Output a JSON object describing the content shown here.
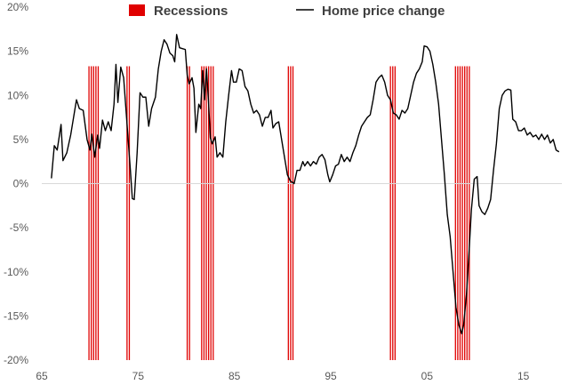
{
  "chart_data": {
    "type": "line",
    "title": "",
    "xlabel": "",
    "ylabel": "",
    "xlim": [
      1965,
      2019
    ],
    "ylim": [
      -20,
      20
    ],
    "x_ticks": [
      1965,
      1975,
      1985,
      1995,
      2005,
      2015
    ],
    "x_tick_labels": [
      "65",
      "75",
      "85",
      "95",
      "05",
      "15"
    ],
    "y_ticks": [
      -20,
      -15,
      -10,
      -5,
      0,
      5,
      10,
      15,
      20
    ],
    "y_tick_labels": [
      "-20%",
      "-15%",
      "-10%",
      "-5%",
      "0%",
      "5%",
      "10%",
      "15%",
      "20%"
    ],
    "grid": false,
    "legend": {
      "placement": "top",
      "entries": [
        {
          "label": "Recessions",
          "color": "#e00000",
          "kind": "bar"
        },
        {
          "label": "Home price change",
          "color": "#000000",
          "kind": "line"
        }
      ]
    },
    "recession_band_height": 13.3,
    "recessions": [
      {
        "start": 1969.9,
        "end": 1970.9
      },
      {
        "start": 1973.85,
        "end": 1974.3
      },
      {
        "start": 1980.1,
        "end": 1980.55
      },
      {
        "start": 1981.6,
        "end": 1982.85
      },
      {
        "start": 1990.6,
        "end": 1991.2
      },
      {
        "start": 2001.2,
        "end": 2001.85
      },
      {
        "start": 2007.95,
        "end": 2009.45
      }
    ],
    "series": [
      {
        "name": "Home price change",
        "color": "#000000",
        "points": [
          [
            1966.0,
            0.6
          ],
          [
            1966.3,
            4.3
          ],
          [
            1966.6,
            3.8
          ],
          [
            1967.0,
            6.7
          ],
          [
            1967.2,
            2.6
          ],
          [
            1967.6,
            3.5
          ],
          [
            1968.0,
            5.5
          ],
          [
            1968.3,
            7.5
          ],
          [
            1968.6,
            9.5
          ],
          [
            1968.9,
            8.5
          ],
          [
            1969.3,
            8.3
          ],
          [
            1969.7,
            5.0
          ],
          [
            1970.0,
            3.8
          ],
          [
            1970.2,
            5.6
          ],
          [
            1970.5,
            3.0
          ],
          [
            1970.8,
            5.5
          ],
          [
            1971.0,
            4.0
          ],
          [
            1971.3,
            7.2
          ],
          [
            1971.6,
            6.0
          ],
          [
            1971.9,
            7.0
          ],
          [
            1972.2,
            6.0
          ],
          [
            1972.5,
            9.0
          ],
          [
            1972.7,
            13.5
          ],
          [
            1972.9,
            9.2
          ],
          [
            1973.2,
            13.2
          ],
          [
            1973.5,
            12.0
          ],
          [
            1973.8,
            7.5
          ],
          [
            1974.0,
            4.5
          ],
          [
            1974.2,
            1.5
          ],
          [
            1974.4,
            -1.7
          ],
          [
            1974.6,
            -1.8
          ],
          [
            1974.9,
            3.5
          ],
          [
            1975.2,
            10.3
          ],
          [
            1975.5,
            9.8
          ],
          [
            1975.8,
            9.8
          ],
          [
            1976.1,
            6.5
          ],
          [
            1976.4,
            8.5
          ],
          [
            1976.8,
            9.8
          ],
          [
            1977.1,
            13.0
          ],
          [
            1977.4,
            15.0
          ],
          [
            1977.7,
            16.3
          ],
          [
            1978.0,
            15.8
          ],
          [
            1978.3,
            14.8
          ],
          [
            1978.6,
            14.5
          ],
          [
            1978.8,
            13.8
          ],
          [
            1979.0,
            16.9
          ],
          [
            1979.3,
            15.4
          ],
          [
            1979.6,
            15.3
          ],
          [
            1979.9,
            15.2
          ],
          [
            1980.1,
            12.3
          ],
          [
            1980.3,
            11.3
          ],
          [
            1980.6,
            12.0
          ],
          [
            1980.8,
            10.8
          ],
          [
            1981.0,
            5.8
          ],
          [
            1981.3,
            9.0
          ],
          [
            1981.5,
            8.5
          ],
          [
            1981.7,
            12.8
          ],
          [
            1981.9,
            9.5
          ],
          [
            1982.1,
            13.0
          ],
          [
            1982.3,
            9.5
          ],
          [
            1982.5,
            5.2
          ],
          [
            1982.7,
            4.5
          ],
          [
            1983.0,
            5.3
          ],
          [
            1983.2,
            3.0
          ],
          [
            1983.5,
            3.5
          ],
          [
            1983.8,
            3.0
          ],
          [
            1984.1,
            7.0
          ],
          [
            1984.4,
            10.0
          ],
          [
            1984.7,
            12.8
          ],
          [
            1984.9,
            11.5
          ],
          [
            1985.2,
            11.5
          ],
          [
            1985.5,
            13.0
          ],
          [
            1985.8,
            12.8
          ],
          [
            1986.1,
            11.0
          ],
          [
            1986.4,
            10.5
          ],
          [
            1986.7,
            9.0
          ],
          [
            1987.0,
            8.0
          ],
          [
            1987.3,
            8.3
          ],
          [
            1987.6,
            7.8
          ],
          [
            1987.9,
            6.5
          ],
          [
            1988.2,
            7.5
          ],
          [
            1988.5,
            7.5
          ],
          [
            1988.8,
            8.3
          ],
          [
            1989.0,
            6.3
          ],
          [
            1989.3,
            6.8
          ],
          [
            1989.6,
            7.0
          ],
          [
            1989.9,
            5.0
          ],
          [
            1990.2,
            3.0
          ],
          [
            1990.5,
            1.0
          ],
          [
            1990.8,
            0.3
          ],
          [
            1991.2,
            0.0
          ],
          [
            1991.5,
            1.5
          ],
          [
            1991.8,
            1.5
          ],
          [
            1992.1,
            2.5
          ],
          [
            1992.3,
            2.0
          ],
          [
            1992.6,
            2.5
          ],
          [
            1992.9,
            2.0
          ],
          [
            1993.2,
            2.5
          ],
          [
            1993.5,
            2.2
          ],
          [
            1993.8,
            3.0
          ],
          [
            1994.1,
            3.3
          ],
          [
            1994.4,
            2.7
          ],
          [
            1994.7,
            1.0
          ],
          [
            1994.9,
            0.2
          ],
          [
            1995.2,
            1.0
          ],
          [
            1995.5,
            2.0
          ],
          [
            1995.8,
            2.2
          ],
          [
            1996.1,
            3.3
          ],
          [
            1996.4,
            2.5
          ],
          [
            1996.7,
            3.0
          ],
          [
            1997.0,
            2.5
          ],
          [
            1997.3,
            3.5
          ],
          [
            1997.6,
            4.3
          ],
          [
            1997.9,
            5.5
          ],
          [
            1998.2,
            6.5
          ],
          [
            1998.5,
            7.0
          ],
          [
            1998.8,
            7.5
          ],
          [
            1999.1,
            7.8
          ],
          [
            1999.4,
            9.5
          ],
          [
            1999.7,
            11.5
          ],
          [
            2000.0,
            12.0
          ],
          [
            2000.3,
            12.3
          ],
          [
            2000.6,
            11.5
          ],
          [
            2000.9,
            10.0
          ],
          [
            2001.2,
            9.5
          ],
          [
            2001.5,
            8.0
          ],
          [
            2001.8,
            7.8
          ],
          [
            2002.1,
            7.3
          ],
          [
            2002.4,
            8.3
          ],
          [
            2002.7,
            8.0
          ],
          [
            2003.0,
            8.5
          ],
          [
            2003.3,
            10.0
          ],
          [
            2003.6,
            11.5
          ],
          [
            2003.9,
            12.5
          ],
          [
            2004.2,
            13.0
          ],
          [
            2004.5,
            13.8
          ],
          [
            2004.7,
            15.6
          ],
          [
            2005.0,
            15.5
          ],
          [
            2005.3,
            15.0
          ],
          [
            2005.6,
            13.5
          ],
          [
            2005.9,
            11.5
          ],
          [
            2006.2,
            9.0
          ],
          [
            2006.5,
            5.0
          ],
          [
            2006.8,
            1.0
          ],
          [
            2007.1,
            -3.5
          ],
          [
            2007.4,
            -6.0
          ],
          [
            2007.7,
            -10.0
          ],
          [
            2008.0,
            -14.0
          ],
          [
            2008.3,
            -16.0
          ],
          [
            2008.6,
            -17.0
          ],
          [
            2008.8,
            -16.0
          ],
          [
            2009.1,
            -12.5
          ],
          [
            2009.4,
            -7.0
          ],
          [
            2009.6,
            -3.0
          ],
          [
            2009.9,
            0.5
          ],
          [
            2010.2,
            0.8
          ],
          [
            2010.4,
            -2.5
          ],
          [
            2010.7,
            -3.2
          ],
          [
            2011.0,
            -3.5
          ],
          [
            2011.3,
            -2.8
          ],
          [
            2011.6,
            -1.8
          ],
          [
            2011.9,
            1.5
          ],
          [
            2012.2,
            4.5
          ],
          [
            2012.5,
            8.5
          ],
          [
            2012.8,
            10.0
          ],
          [
            2013.1,
            10.5
          ],
          [
            2013.4,
            10.7
          ],
          [
            2013.7,
            10.6
          ],
          [
            2013.9,
            7.3
          ],
          [
            2014.2,
            7.0
          ],
          [
            2014.5,
            6.0
          ],
          [
            2014.8,
            6.0
          ],
          [
            2015.1,
            6.3
          ],
          [
            2015.4,
            5.5
          ],
          [
            2015.7,
            5.8
          ],
          [
            2016.0,
            5.3
          ],
          [
            2016.3,
            5.5
          ],
          [
            2016.6,
            5.0
          ],
          [
            2016.9,
            5.6
          ],
          [
            2017.2,
            5.0
          ],
          [
            2017.5,
            5.5
          ],
          [
            2017.8,
            4.6
          ],
          [
            2018.1,
            5.0
          ],
          [
            2018.4,
            3.8
          ],
          [
            2018.7,
            3.6
          ]
        ]
      }
    ]
  }
}
